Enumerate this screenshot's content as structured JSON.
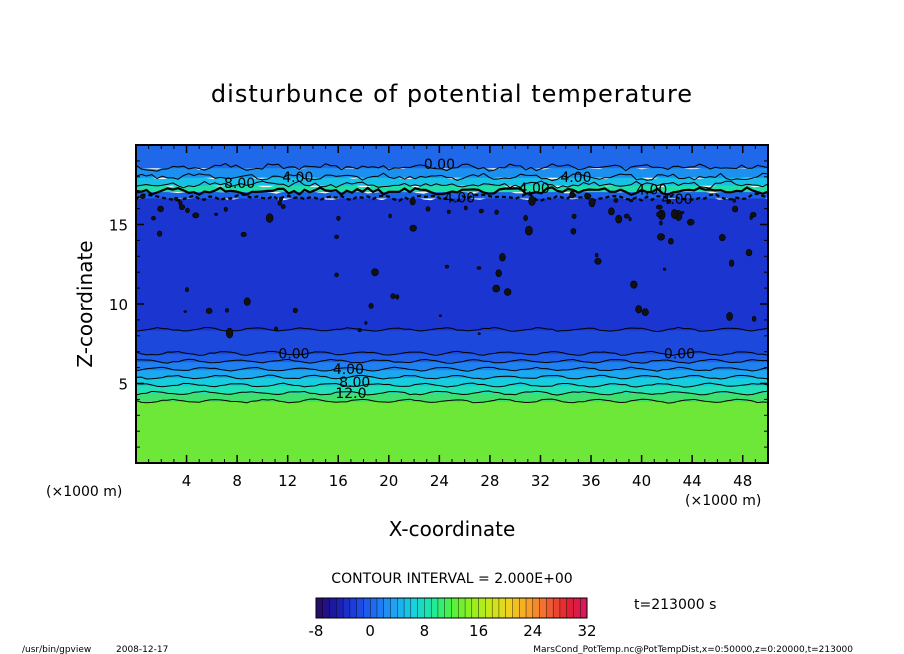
{
  "chart_data": {
    "type": "heatmap",
    "title": "disturbunce of potential temperature",
    "xlabel": "X-coordinate",
    "ylabel": "Z-coordinate",
    "x_unit": "(×1000 m)",
    "y_unit": "(×1000 m)",
    "xlim": [
      0,
      50
    ],
    "ylim": [
      0,
      20
    ],
    "x_ticks": [
      4,
      8,
      12,
      16,
      20,
      24,
      28,
      32,
      36,
      40,
      44,
      48
    ],
    "y_ticks": [
      5,
      10,
      15
    ],
    "contour_interval_text": "CONTOUR INTERVAL = 2.000E+00",
    "time_text": "t=213000 s",
    "colorbar": {
      "min": -8,
      "max": 32,
      "ticks": [
        -8,
        0,
        8,
        16,
        24,
        32
      ],
      "colors": [
        "#2a0a5e",
        "#1a1aa8",
        "#1c3fe0",
        "#1f6cf0",
        "#20a0f5",
        "#18d0e0",
        "#20e8a0",
        "#50f040",
        "#90f020",
        "#c8e818",
        "#f0d020",
        "#f8a028",
        "#f06030",
        "#e02030",
        "#d81860"
      ]
    },
    "bands": [
      {
        "z_bottom": 0.0,
        "z_top": 3.9,
        "value": 14,
        "color": "#6ee838"
      },
      {
        "z_bottom": 3.9,
        "z_top": 4.4,
        "value": 12,
        "color": "#40e070"
      },
      {
        "z_bottom": 4.4,
        "z_top": 4.9,
        "value": 10,
        "color": "#22e0b8"
      },
      {
        "z_bottom": 4.9,
        "z_top": 5.4,
        "value": 8,
        "color": "#18cce0"
      },
      {
        "z_bottom": 5.4,
        "z_top": 5.9,
        "value": 6,
        "color": "#1ca8f0"
      },
      {
        "z_bottom": 5.9,
        "z_top": 6.4,
        "value": 4,
        "color": "#1f80f0"
      },
      {
        "z_bottom": 6.4,
        "z_top": 6.9,
        "value": 2,
        "color": "#1f5ee8"
      },
      {
        "z_bottom": 6.9,
        "z_top": 8.4,
        "value": 0,
        "color": "#1c48dc"
      },
      {
        "z_bottom": 8.4,
        "z_top": 16.7,
        "value": -2,
        "color": "#1a35d0"
      },
      {
        "z_bottom": 16.7,
        "z_top": 17.1,
        "value": 2,
        "color": "#1a60e8"
      },
      {
        "z_bottom": 17.1,
        "z_top": 17.5,
        "value": 8,
        "color": "#20e0a8"
      },
      {
        "z_bottom": 17.5,
        "z_top": 18.0,
        "value": 6,
        "color": "#18c0e8"
      },
      {
        "z_bottom": 18.0,
        "z_top": 18.6,
        "value": 4,
        "color": "#1c90f0"
      },
      {
        "z_bottom": 18.6,
        "z_top": 20.0,
        "value": 2,
        "color": "#1f68ea"
      }
    ],
    "contour_labels": [
      {
        "text": "0.00",
        "x": 24.0,
        "z": 18.8
      },
      {
        "text": "4.00",
        "x": 12.8,
        "z": 18.0
      },
      {
        "text": "4.00",
        "x": 34.8,
        "z": 18.0
      },
      {
        "text": "8.00",
        "x": 8.2,
        "z": 17.6
      },
      {
        "text": "4.00",
        "x": 31.5,
        "z": 17.3
      },
      {
        "text": "4.00",
        "x": 40.8,
        "z": 17.2
      },
      {
        "text": "4.00",
        "x": 25.6,
        "z": 16.7
      },
      {
        "text": "4.00",
        "x": 42.8,
        "z": 16.6
      },
      {
        "text": "0.00",
        "x": 12.5,
        "z": 6.9
      },
      {
        "text": "0.00",
        "x": 43.0,
        "z": 6.9
      },
      {
        "text": "4.00",
        "x": 16.8,
        "z": 5.9
      },
      {
        "text": "8.00",
        "x": 17.3,
        "z": 5.1
      },
      {
        "text": "12.0",
        "x": 17.0,
        "z": 4.4
      }
    ]
  },
  "footer": {
    "program": "/usr/bin/gpview",
    "date": "2008-12-17",
    "source": "MarsCond_PotTemp.nc@PotTempDist,x=0:50000,z=0:20000,t=213000"
  }
}
